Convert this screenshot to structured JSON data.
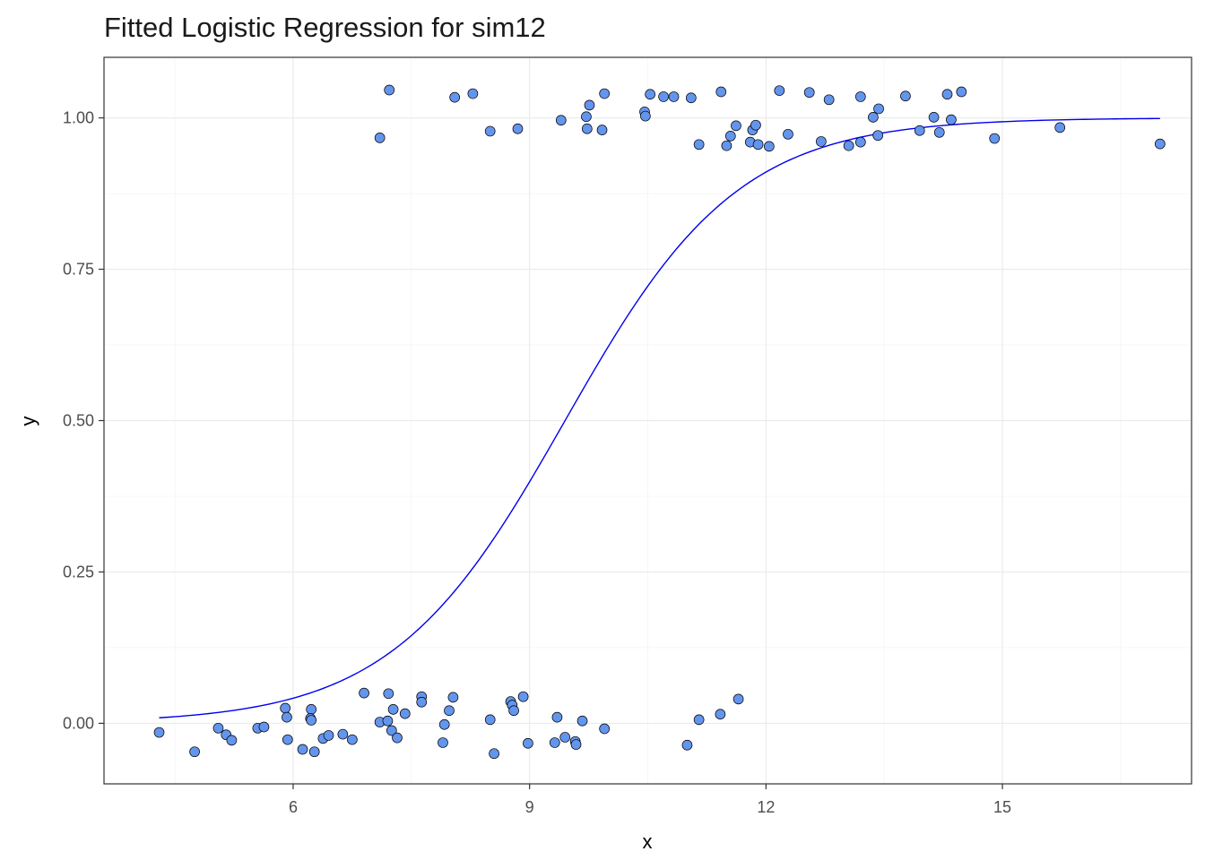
{
  "chart_data": {
    "type": "scatter",
    "title": "Fitted Logistic Regression for sim12",
    "xlabel": "x",
    "ylabel": "y",
    "xlim": [
      3.6,
      17.4
    ],
    "ylim": [
      -0.1,
      1.1
    ],
    "x_ticks": [
      6,
      9,
      12,
      15
    ],
    "x_tick_labels": [
      "6",
      "9",
      "12",
      "15"
    ],
    "y_ticks": [
      0.0,
      0.25,
      0.5,
      0.75,
      1.0
    ],
    "y_tick_labels": [
      "0.00",
      "0.25",
      "0.50",
      "0.75",
      "1.00"
    ],
    "grid": true,
    "colors": {
      "points": "#6495ed",
      "point_outline": "#000000",
      "curve": "#0000ee",
      "grid_major": "#ebebeb",
      "grid_minor": "#f5f5f5",
      "border": "#333333"
    },
    "curve": {
      "type": "logistic",
      "intercept": -8.6,
      "slope": 0.91,
      "x_range": [
        4.3,
        17.0
      ],
      "y": [
        0.0076,
        0.0143,
        0.0269,
        0.0499,
        0.0913,
        0.16,
        0.267,
        0.413,
        0.569,
        0.713,
        0.824,
        0.898,
        0.943,
        0.969,
        0.983,
        0.991,
        0.995,
        0.997
      ],
      "x": [
        4.3,
        5.0,
        5.7,
        6.4,
        7.1,
        7.8,
        8.5,
        9.2,
        9.9,
        10.6,
        11.3,
        12.0,
        12.7,
        13.4,
        14.1,
        14.8,
        15.5,
        17.0
      ]
    },
    "points": [
      {
        "x": 4.3,
        "y": -0.015
      },
      {
        "x": 4.75,
        "y": -0.047
      },
      {
        "x": 5.05,
        "y": -0.008
      },
      {
        "x": 5.15,
        "y": -0.019
      },
      {
        "x": 5.22,
        "y": -0.028
      },
      {
        "x": 5.55,
        "y": -0.008
      },
      {
        "x": 5.63,
        "y": -0.006
      },
      {
        "x": 5.9,
        "y": 0.025
      },
      {
        "x": 5.92,
        "y": 0.01
      },
      {
        "x": 5.93,
        "y": -0.027
      },
      {
        "x": 6.12,
        "y": -0.043
      },
      {
        "x": 6.23,
        "y": 0.023
      },
      {
        "x": 6.22,
        "y": 0.008
      },
      {
        "x": 6.23,
        "y": 0.005
      },
      {
        "x": 6.27,
        "y": -0.047
      },
      {
        "x": 6.38,
        "y": -0.025
      },
      {
        "x": 6.45,
        "y": -0.02
      },
      {
        "x": 6.63,
        "y": -0.018
      },
      {
        "x": 6.75,
        "y": -0.027
      },
      {
        "x": 6.9,
        "y": 0.05
      },
      {
        "x": 7.1,
        "y": 0.002
      },
      {
        "x": 7.2,
        "y": 0.004
      },
      {
        "x": 7.21,
        "y": 0.049
      },
      {
        "x": 7.25,
        "y": -0.012
      },
      {
        "x": 7.27,
        "y": 0.023
      },
      {
        "x": 7.32,
        "y": -0.024
      },
      {
        "x": 7.42,
        "y": 0.016
      },
      {
        "x": 7.63,
        "y": 0.044
      },
      {
        "x": 7.63,
        "y": 0.035
      },
      {
        "x": 7.9,
        "y": -0.032
      },
      {
        "x": 7.92,
        "y": -0.002
      },
      {
        "x": 7.98,
        "y": 0.021
      },
      {
        "x": 8.03,
        "y": 0.043
      },
      {
        "x": 8.5,
        "y": 0.006
      },
      {
        "x": 8.55,
        "y": -0.05
      },
      {
        "x": 8.76,
        "y": 0.036
      },
      {
        "x": 8.78,
        "y": 0.03
      },
      {
        "x": 8.8,
        "y": 0.021
      },
      {
        "x": 8.92,
        "y": 0.044
      },
      {
        "x": 8.98,
        "y": -0.033
      },
      {
        "x": 9.32,
        "y": -0.032
      },
      {
        "x": 9.35,
        "y": 0.01
      },
      {
        "x": 9.45,
        "y": -0.023
      },
      {
        "x": 9.58,
        "y": -0.03
      },
      {
        "x": 9.59,
        "y": -0.035
      },
      {
        "x": 9.67,
        "y": 0.004
      },
      {
        "x": 9.95,
        "y": -0.009
      },
      {
        "x": 11.0,
        "y": -0.036
      },
      {
        "x": 11.15,
        "y": 0.006
      },
      {
        "x": 11.42,
        "y": 0.015
      },
      {
        "x": 11.65,
        "y": 0.04
      },
      {
        "x": 7.1,
        "y": 0.967
      },
      {
        "x": 7.22,
        "y": 1.046
      },
      {
        "x": 8.05,
        "y": 1.034
      },
      {
        "x": 8.28,
        "y": 1.04
      },
      {
        "x": 8.5,
        "y": 0.978
      },
      {
        "x": 8.85,
        "y": 0.982
      },
      {
        "x": 9.4,
        "y": 0.996
      },
      {
        "x": 9.72,
        "y": 1.002
      },
      {
        "x": 9.73,
        "y": 0.982
      },
      {
        "x": 9.76,
        "y": 1.021
      },
      {
        "x": 9.92,
        "y": 0.98
      },
      {
        "x": 9.95,
        "y": 1.04
      },
      {
        "x": 10.46,
        "y": 1.01
      },
      {
        "x": 10.47,
        "y": 1.003
      },
      {
        "x": 10.53,
        "y": 1.039
      },
      {
        "x": 10.7,
        "y": 1.035
      },
      {
        "x": 10.83,
        "y": 1.035
      },
      {
        "x": 11.05,
        "y": 1.033
      },
      {
        "x": 11.15,
        "y": 0.956
      },
      {
        "x": 11.43,
        "y": 1.043
      },
      {
        "x": 11.5,
        "y": 0.954
      },
      {
        "x": 11.55,
        "y": 0.97
      },
      {
        "x": 11.62,
        "y": 0.987
      },
      {
        "x": 11.8,
        "y": 0.96
      },
      {
        "x": 11.83,
        "y": 0.98
      },
      {
        "x": 11.87,
        "y": 0.988
      },
      {
        "x": 11.9,
        "y": 0.956
      },
      {
        "x": 12.04,
        "y": 0.953
      },
      {
        "x": 12.17,
        "y": 1.045
      },
      {
        "x": 12.28,
        "y": 0.973
      },
      {
        "x": 12.55,
        "y": 1.042
      },
      {
        "x": 12.7,
        "y": 0.961
      },
      {
        "x": 12.8,
        "y": 1.03
      },
      {
        "x": 13.05,
        "y": 0.954
      },
      {
        "x": 13.2,
        "y": 1.035
      },
      {
        "x": 13.2,
        "y": 0.96
      },
      {
        "x": 13.36,
        "y": 1.001
      },
      {
        "x": 13.42,
        "y": 0.971
      },
      {
        "x": 13.43,
        "y": 1.015
      },
      {
        "x": 13.77,
        "y": 1.036
      },
      {
        "x": 13.95,
        "y": 0.979
      },
      {
        "x": 14.13,
        "y": 1.001
      },
      {
        "x": 14.2,
        "y": 0.976
      },
      {
        "x": 14.3,
        "y": 1.039
      },
      {
        "x": 14.35,
        "y": 0.997
      },
      {
        "x": 14.48,
        "y": 1.043
      },
      {
        "x": 14.9,
        "y": 0.966
      },
      {
        "x": 15.73,
        "y": 0.984
      },
      {
        "x": 17.0,
        "y": 0.957
      }
    ]
  }
}
